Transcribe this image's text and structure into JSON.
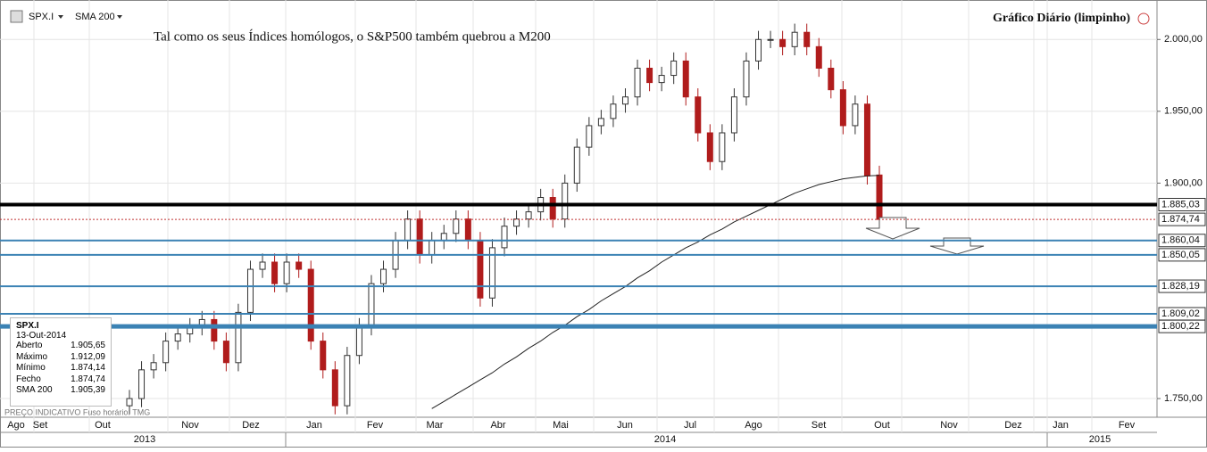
{
  "chart_data": {
    "type": "candlestick",
    "ticker": "SPX.I",
    "indicator": "SMA 200",
    "title": "Gráfico Diário (limpinho)",
    "annotation": "Tal como os seus Índices homólogos, o S&P500 também quebrou a M200",
    "footer": "PREÇO INDICATIVO  Fuso horário: TMG",
    "ylim": [
      1737,
      2025
    ],
    "yticks": [
      {
        "value": 1750,
        "label": "1.750,00"
      },
      {
        "value": 1900,
        "label": "1.900,00"
      },
      {
        "value": 1950,
        "label": "1.950,00"
      },
      {
        "value": 2000,
        "label": "2.000,00"
      }
    ],
    "grid": true,
    "months": [
      "Ago",
      "Set",
      "Out",
      "Nov",
      "Dez",
      "Jan",
      "Fev",
      "Mar",
      "Abr",
      "Mai",
      "Jun",
      "Jul",
      "Ago",
      "Set",
      "Out",
      "Nov",
      "Dez",
      "Jan",
      "Fev"
    ],
    "years": [
      "2013",
      "2014",
      "2015"
    ],
    "up_color": "#333333",
    "down_color": "#b01c1c",
    "candles": [
      [
        1745,
        1756,
        1739,
        1750
      ],
      [
        1750,
        1776,
        1744,
        1770
      ],
      [
        1770,
        1781,
        1764,
        1775
      ],
      [
        1775,
        1796,
        1769,
        1790
      ],
      [
        1790,
        1801,
        1784,
        1795
      ],
      [
        1795,
        1806,
        1789,
        1800
      ],
      [
        1800,
        1811,
        1794,
        1805
      ],
      [
        1805,
        1811,
        1784,
        1790
      ],
      [
        1790,
        1796,
        1769,
        1775
      ],
      [
        1775,
        1816,
        1769,
        1810
      ],
      [
        1810,
        1846,
        1804,
        1840
      ],
      [
        1840,
        1851,
        1834,
        1845
      ],
      [
        1845,
        1851,
        1824,
        1830
      ],
      [
        1830,
        1851,
        1824,
        1845
      ],
      [
        1845,
        1851,
        1834,
        1840
      ],
      [
        1840,
        1846,
        1784,
        1790
      ],
      [
        1790,
        1796,
        1764,
        1770
      ],
      [
        1770,
        1776,
        1739,
        1745
      ],
      [
        1745,
        1786,
        1739,
        1780
      ],
      [
        1780,
        1806,
        1774,
        1800
      ],
      [
        1800,
        1836,
        1794,
        1830
      ],
      [
        1830,
        1846,
        1824,
        1840
      ],
      [
        1840,
        1866,
        1834,
        1860
      ],
      [
        1860,
        1881,
        1854,
        1875
      ],
      [
        1875,
        1881,
        1844,
        1850
      ],
      [
        1850,
        1866,
        1844,
        1860
      ],
      [
        1860,
        1871,
        1854,
        1865
      ],
      [
        1865,
        1881,
        1859,
        1875
      ],
      [
        1875,
        1881,
        1854,
        1860
      ],
      [
        1860,
        1866,
        1814,
        1820
      ],
      [
        1820,
        1861,
        1814,
        1855
      ],
      [
        1855,
        1876,
        1849,
        1870
      ],
      [
        1870,
        1881,
        1864,
        1875
      ],
      [
        1875,
        1886,
        1869,
        1880
      ],
      [
        1880,
        1896,
        1874,
        1890
      ],
      [
        1890,
        1896,
        1869,
        1875
      ],
      [
        1875,
        1906,
        1869,
        1900
      ],
      [
        1900,
        1931,
        1894,
        1925
      ],
      [
        1925,
        1946,
        1919,
        1940
      ],
      [
        1940,
        1951,
        1934,
        1945
      ],
      [
        1945,
        1961,
        1939,
        1955
      ],
      [
        1955,
        1966,
        1949,
        1960
      ],
      [
        1960,
        1986,
        1954,
        1980
      ],
      [
        1980,
        1986,
        1964,
        1970
      ],
      [
        1970,
        1981,
        1964,
        1975
      ],
      [
        1975,
        1991,
        1969,
        1985
      ],
      [
        1985,
        1991,
        1954,
        1960
      ],
      [
        1960,
        1966,
        1929,
        1935
      ],
      [
        1935,
        1941,
        1909,
        1915
      ],
      [
        1915,
        1941,
        1909,
        1935
      ],
      [
        1935,
        1966,
        1929,
        1960
      ],
      [
        1960,
        1991,
        1954,
        1985
      ],
      [
        1985,
        2006,
        1979,
        2000
      ],
      [
        2000,
        2006,
        1994,
        2000
      ],
      [
        2000,
        2006,
        1989,
        1995
      ],
      [
        1995,
        2011,
        1989,
        2005
      ],
      [
        2005,
        2011,
        1989,
        1995
      ],
      [
        1995,
        2001,
        1974,
        1980
      ],
      [
        1980,
        1986,
        1959,
        1965
      ],
      [
        1965,
        1971,
        1934,
        1940
      ],
      [
        1940,
        1961,
        1934,
        1955
      ],
      [
        1955,
        1961,
        1899,
        1905
      ],
      [
        1905.65,
        1912.09,
        1874.14,
        1874.74
      ]
    ],
    "sma": {
      "name": "SMA 200",
      "color": "#222222",
      "values": [
        null,
        null,
        null,
        null,
        null,
        null,
        null,
        null,
        null,
        null,
        null,
        null,
        null,
        null,
        null,
        null,
        null,
        null,
        null,
        null,
        null,
        null,
        null,
        null,
        null,
        1743,
        1748,
        1753,
        1758,
        1763,
        1768,
        1774,
        1779,
        1785,
        1790,
        1796,
        1801,
        1807,
        1812,
        1818,
        1823,
        1828,
        1834,
        1839,
        1845,
        1850,
        1855,
        1859,
        1864,
        1868,
        1873,
        1877,
        1881,
        1885,
        1889,
        1893,
        1896,
        1899,
        1901,
        1903,
        1904,
        1905,
        1905.39
      ]
    },
    "levels": [
      {
        "value": 1885.03,
        "label": "1.885,03",
        "color": "#000000",
        "width": 4
      },
      {
        "value": 1874.74,
        "label": "1.874,74",
        "color": "#c03030",
        "width": 1
      },
      {
        "value": 1860.04,
        "label": "1.860,04",
        "color": "#3b82b4",
        "width": 2
      },
      {
        "value": 1850.05,
        "label": "1.850,05",
        "color": "#3b82b4",
        "width": 2
      },
      {
        "value": 1828.19,
        "label": "1.828,19",
        "color": "#3b82b4",
        "width": 2
      },
      {
        "value": 1809.02,
        "label": "1.809,02",
        "color": "#3b82b4",
        "width": 2
      },
      {
        "value": 1800.22,
        "label": "1.800,22",
        "color": "#3b82b4",
        "width": 5
      }
    ],
    "info": {
      "title": "SPX.I",
      "date": "13-Out-2014",
      "rows": [
        [
          "Aberto",
          "1.905,65"
        ],
        [
          "Máximo",
          "1.912,09"
        ],
        [
          "Mínimo",
          "1.874,14"
        ],
        [
          "Fecho",
          "1.874,74"
        ],
        [
          "SMA 200",
          "1.905,39"
        ]
      ]
    }
  }
}
